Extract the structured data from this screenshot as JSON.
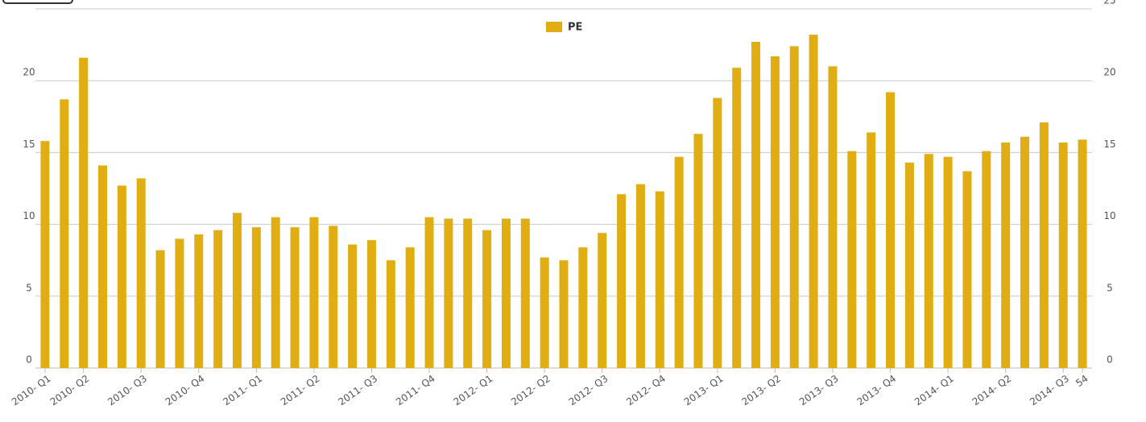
{
  "chart_data": {
    "type": "bar",
    "series": [
      {
        "name": "PE",
        "color": "#e0ae12",
        "values": [
          15.8,
          18.7,
          21.6,
          14.1,
          12.7,
          13.2,
          8.2,
          9.0,
          9.3,
          9.6,
          10.8,
          9.8,
          10.5,
          9.8,
          10.5,
          9.9,
          8.6,
          8.9,
          7.5,
          8.4,
          10.5,
          10.4,
          10.4,
          9.6,
          10.4,
          10.4,
          7.7,
          7.5,
          8.4,
          9.4,
          12.1,
          12.8,
          12.3,
          14.7,
          16.3,
          18.8,
          20.9,
          22.7,
          21.7,
          22.4,
          23.2,
          21.0,
          15.1,
          16.4,
          19.2,
          14.3,
          14.9,
          14.7,
          13.7,
          15.1,
          15.7,
          16.1,
          17.1,
          15.7,
          15.9
        ]
      }
    ],
    "categories": [
      "2010- Q1",
      null,
      "2010- Q2",
      null,
      null,
      "2010- Q3",
      null,
      null,
      "2010- Q4",
      null,
      null,
      "2011- Q1",
      null,
      null,
      "2011- Q2",
      null,
      null,
      "2011- Q3",
      null,
      null,
      "2011- Q4",
      null,
      null,
      "2012- Q1",
      null,
      null,
      "2012- Q2",
      null,
      null,
      "2012- Q3",
      null,
      null,
      "2012- Q4",
      null,
      null,
      "2013- Q1",
      null,
      null,
      "2013- Q2",
      null,
      null,
      "2013- Q3",
      null,
      null,
      "2013- Q4",
      null,
      null,
      "2014- Q1",
      null,
      null,
      "2014- Q2",
      null,
      null,
      "2014- Q3",
      "54"
    ],
    "ylim": [
      0,
      25
    ],
    "yticks": [
      0,
      5,
      10,
      15,
      20,
      25
    ],
    "grid": true,
    "legend": "top"
  }
}
